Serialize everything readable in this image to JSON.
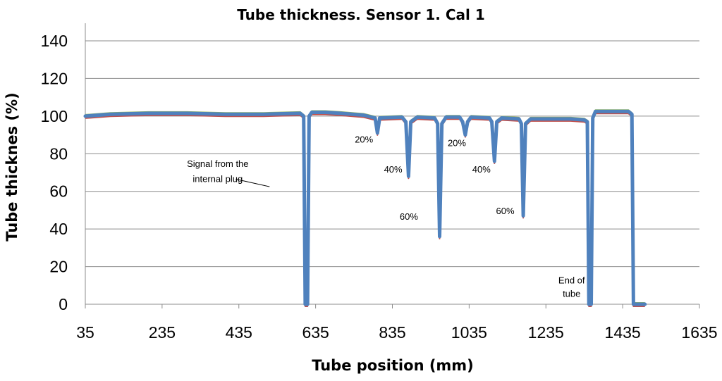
{
  "chart_data": {
    "type": "line",
    "title": "Tube thickness. Sensor 1. Cal 1",
    "xlabel": "Tube position (mm)",
    "ylabel": "Tube thicknes (%)",
    "xlim": [
      35,
      1635
    ],
    "ylim": [
      0,
      140
    ],
    "x_ticks": [
      "35",
      "235",
      "435",
      "635",
      "835",
      "1035",
      "1235",
      "1435",
      "1635"
    ],
    "y_ticks": [
      "0",
      "20",
      "40",
      "60",
      "80",
      "100",
      "120",
      "140"
    ],
    "grid": "horizontal",
    "colors": {
      "main": "#4f81bd",
      "secondary": "#c0504d",
      "tertiary": "#9bbb59",
      "purple": "#8064a2"
    },
    "series": [
      {
        "name": "Sensor 1",
        "points": [
          [
            35,
            100
          ],
          [
            100,
            101
          ],
          [
            200,
            101.5
          ],
          [
            300,
            101.5
          ],
          [
            400,
            101
          ],
          [
            500,
            101
          ],
          [
            595,
            101.5
          ],
          [
            604,
            100
          ],
          [
            608,
            0
          ],
          [
            614,
            0
          ],
          [
            618,
            100
          ],
          [
            625,
            102
          ],
          [
            660,
            102
          ],
          [
            700,
            101.5
          ],
          [
            760,
            100.5
          ],
          [
            790,
            99
          ],
          [
            796,
            91
          ],
          [
            802,
            99
          ],
          [
            860,
            99.5
          ],
          [
            870,
            97
          ],
          [
            877,
            68
          ],
          [
            883,
            97
          ],
          [
            900,
            99.5
          ],
          [
            945,
            99
          ],
          [
            953,
            96
          ],
          [
            958,
            36
          ],
          [
            964,
            96
          ],
          [
            975,
            99.5
          ],
          [
            1010,
            99.5
          ],
          [
            1018,
            97
          ],
          [
            1025,
            90
          ],
          [
            1031,
            97
          ],
          [
            1040,
            99.5
          ],
          [
            1088,
            99
          ],
          [
            1094,
            97
          ],
          [
            1101,
            76
          ],
          [
            1107,
            97
          ],
          [
            1120,
            99
          ],
          [
            1165,
            98.5
          ],
          [
            1171,
            96
          ],
          [
            1176,
            47
          ],
          [
            1182,
            96
          ],
          [
            1195,
            98.5
          ],
          [
            1300,
            98.5
          ],
          [
            1335,
            98
          ],
          [
            1343,
            97
          ],
          [
            1347,
            0
          ],
          [
            1353,
            0
          ],
          [
            1357,
            99
          ],
          [
            1364,
            102.5
          ],
          [
            1450,
            102.5
          ],
          [
            1459,
            101
          ],
          [
            1463,
            0
          ],
          [
            1468,
            0
          ],
          [
            1493,
            0
          ]
        ]
      }
    ],
    "annotations": [
      {
        "label": "Signal from the",
        "x": 380,
        "y": 73
      },
      {
        "label": "internal plug",
        "x": 380,
        "y": 65
      },
      {
        "label": "20%",
        "x": 761,
        "y": 86
      },
      {
        "label": "40%",
        "x": 837,
        "y": 70
      },
      {
        "label": "60%",
        "x": 878,
        "y": 45
      },
      {
        "label": "20%",
        "x": 1003,
        "y": 84
      },
      {
        "label": "40%",
        "x": 1067,
        "y": 70
      },
      {
        "label": "60%",
        "x": 1129,
        "y": 48
      },
      {
        "label": "End of",
        "x": 1302,
        "y": 11
      },
      {
        "label": "tube",
        "x": 1302,
        "y": 4
      }
    ]
  }
}
